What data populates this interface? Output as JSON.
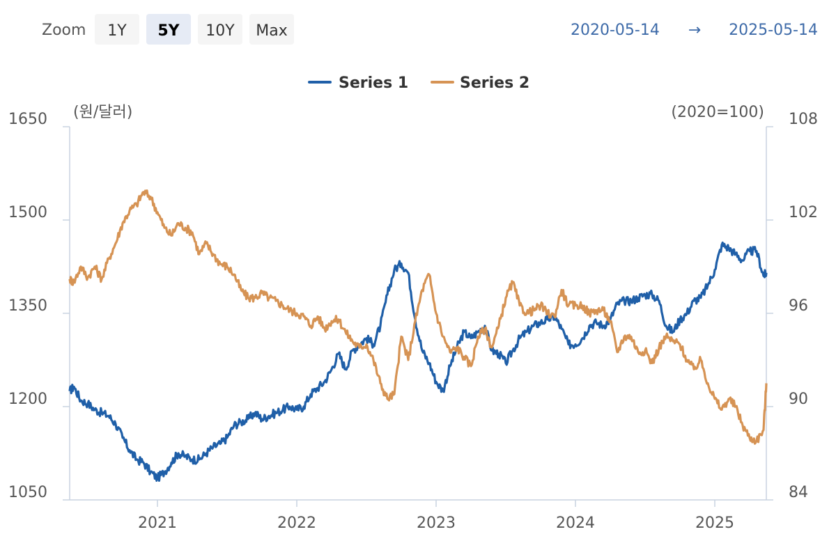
{
  "toolbar": {
    "zoom_label": "Zoom",
    "buttons": [
      {
        "label": "1Y",
        "active": false
      },
      {
        "label": "5Y",
        "active": true
      },
      {
        "label": "10Y",
        "active": false
      },
      {
        "label": "Max",
        "active": false
      }
    ],
    "range_from": "2020-05-14",
    "range_arrow": "→",
    "range_to": "2025-05-14"
  },
  "chart_data": {
    "type": "line",
    "legend_position": "top-center",
    "grid": false,
    "y_left_unit": "(원/달러)",
    "y_right_unit": "(2020=100)",
    "xlim": [
      2020.37,
      2025.37
    ],
    "ylim_left": [
      1050,
      1650
    ],
    "ylim_right": [
      84,
      108
    ],
    "y_left_ticks": [
      1050,
      1200,
      1350,
      1500,
      1650
    ],
    "y_right_ticks": [
      84,
      90,
      96,
      102,
      108
    ],
    "x_ticks": [
      {
        "value": 2021,
        "label": "2021"
      },
      {
        "value": 2022,
        "label": "2022"
      },
      {
        "value": 2023,
        "label": "2023"
      },
      {
        "value": 2024,
        "label": "2024"
      },
      {
        "value": 2025,
        "label": "2025"
      }
    ],
    "series": [
      {
        "name": "Series 1",
        "color": "#1f5fa8",
        "axis": "left",
        "x": [
          2020.37,
          2020.4,
          2020.45,
          2020.5,
          2020.55,
          2020.6,
          2020.65,
          2020.7,
          2020.75,
          2020.8,
          2020.85,
          2020.9,
          2020.95,
          2021.0,
          2021.05,
          2021.1,
          2021.15,
          2021.2,
          2021.25,
          2021.3,
          2021.35,
          2021.4,
          2021.45,
          2021.5,
          2021.55,
          2021.6,
          2021.65,
          2021.7,
          2021.75,
          2021.8,
          2021.85,
          2021.9,
          2021.95,
          2022.0,
          2022.05,
          2022.1,
          2022.15,
          2022.2,
          2022.25,
          2022.3,
          2022.35,
          2022.4,
          2022.45,
          2022.5,
          2022.55,
          2022.6,
          2022.65,
          2022.7,
          2022.75,
          2022.8,
          2022.85,
          2022.9,
          2022.95,
          2023.0,
          2023.05,
          2023.1,
          2023.15,
          2023.2,
          2023.25,
          2023.3,
          2023.35,
          2023.4,
          2023.45,
          2023.5,
          2023.55,
          2023.6,
          2023.65,
          2023.7,
          2023.75,
          2023.8,
          2023.85,
          2023.9,
          2023.95,
          2024.0,
          2024.05,
          2024.1,
          2024.15,
          2024.2,
          2024.25,
          2024.3,
          2024.35,
          2024.4,
          2024.45,
          2024.5,
          2024.55,
          2024.6,
          2024.65,
          2024.7,
          2024.75,
          2024.8,
          2024.85,
          2024.9,
          2024.95,
          2025.0,
          2025.05,
          2025.1,
          2025.15,
          2025.2,
          2025.25,
          2025.3,
          2025.35,
          2025.37
        ],
        "y": [
          1225,
          1232,
          1210,
          1205,
          1195,
          1190,
          1185,
          1172,
          1150,
          1130,
          1115,
          1110,
          1095,
          1085,
          1095,
          1110,
          1125,
          1120,
          1115,
          1115,
          1125,
          1135,
          1140,
          1150,
          1170,
          1175,
          1180,
          1190,
          1180,
          1185,
          1190,
          1195,
          1200,
          1195,
          1200,
          1220,
          1230,
          1240,
          1260,
          1285,
          1260,
          1290,
          1300,
          1310,
          1300,
          1330,
          1380,
          1420,
          1430,
          1415,
          1340,
          1290,
          1270,
          1240,
          1225,
          1265,
          1295,
          1320,
          1310,
          1320,
          1330,
          1290,
          1285,
          1270,
          1290,
          1310,
          1320,
          1330,
          1335,
          1340,
          1345,
          1325,
          1300,
          1300,
          1310,
          1330,
          1335,
          1330,
          1340,
          1365,
          1370,
          1370,
          1375,
          1380,
          1380,
          1370,
          1330,
          1320,
          1340,
          1350,
          1370,
          1375,
          1395,
          1420,
          1460,
          1455,
          1445,
          1435,
          1450,
          1450,
          1410,
          1415
        ]
      },
      {
        "name": "Series 2",
        "color": "#d69354",
        "axis": "right",
        "x": [
          2020.37,
          2020.4,
          2020.45,
          2020.5,
          2020.55,
          2020.6,
          2020.65,
          2020.7,
          2020.75,
          2020.8,
          2020.85,
          2020.9,
          2020.95,
          2021.0,
          2021.05,
          2021.1,
          2021.15,
          2021.2,
          2021.25,
          2021.3,
          2021.35,
          2021.4,
          2021.45,
          2021.5,
          2021.55,
          2021.6,
          2021.65,
          2021.7,
          2021.75,
          2021.8,
          2021.85,
          2021.9,
          2021.95,
          2022.0,
          2022.05,
          2022.1,
          2022.15,
          2022.2,
          2022.25,
          2022.3,
          2022.35,
          2022.4,
          2022.45,
          2022.5,
          2022.55,
          2022.6,
          2022.65,
          2022.7,
          2022.75,
          2022.8,
          2022.85,
          2022.9,
          2022.95,
          2023.0,
          2023.05,
          2023.1,
          2023.15,
          2023.2,
          2023.25,
          2023.3,
          2023.35,
          2023.4,
          2023.45,
          2023.5,
          2023.55,
          2023.6,
          2023.65,
          2023.7,
          2023.75,
          2023.8,
          2023.85,
          2023.9,
          2023.95,
          2024.0,
          2024.05,
          2024.1,
          2024.15,
          2024.2,
          2024.25,
          2024.3,
          2024.35,
          2024.4,
          2024.45,
          2024.5,
          2024.55,
          2024.6,
          2024.65,
          2024.7,
          2024.75,
          2024.8,
          2024.85,
          2024.9,
          2024.95,
          2025.0,
          2025.05,
          2025.1,
          2025.15,
          2025.2,
          2025.25,
          2025.3,
          2025.35,
          2025.37
        ],
        "y": [
          98.2,
          98.0,
          99.0,
          98.3,
          99.0,
          98.2,
          99.5,
          100.5,
          101.8,
          102.6,
          103.0,
          103.8,
          103.5,
          102.5,
          101.5,
          101.0,
          101.8,
          101.5,
          101.2,
          99.8,
          100.5,
          99.8,
          99.2,
          99.0,
          98.5,
          97.5,
          97.0,
          97.0,
          97.3,
          97.0,
          96.8,
          96.5,
          96.2,
          96.0,
          95.8,
          95.2,
          95.8,
          95.0,
          95.5,
          95.6,
          94.8,
          94.2,
          93.8,
          94.0,
          93.0,
          91.5,
          90.5,
          90.8,
          94.5,
          93.0,
          95.5,
          97.5,
          98.5,
          96.0,
          94.5,
          93.5,
          93.8,
          93.2,
          92.6,
          94.5,
          95.0,
          93.8,
          95.2,
          97.0,
          98.0,
          96.5,
          96.0,
          96.2,
          96.5,
          96.0,
          95.8,
          97.5,
          96.5,
          96.5,
          96.5,
          96.0,
          96.2,
          96.2,
          95.5,
          93.5,
          94.5,
          94.5,
          93.5,
          93.6,
          92.8,
          93.8,
          94.5,
          94.2,
          94.0,
          93.0,
          92.4,
          93.0,
          91.5,
          90.5,
          89.8,
          90.5,
          90.0,
          88.8,
          88.0,
          87.8,
          88.5,
          91.5
        ]
      }
    ]
  }
}
